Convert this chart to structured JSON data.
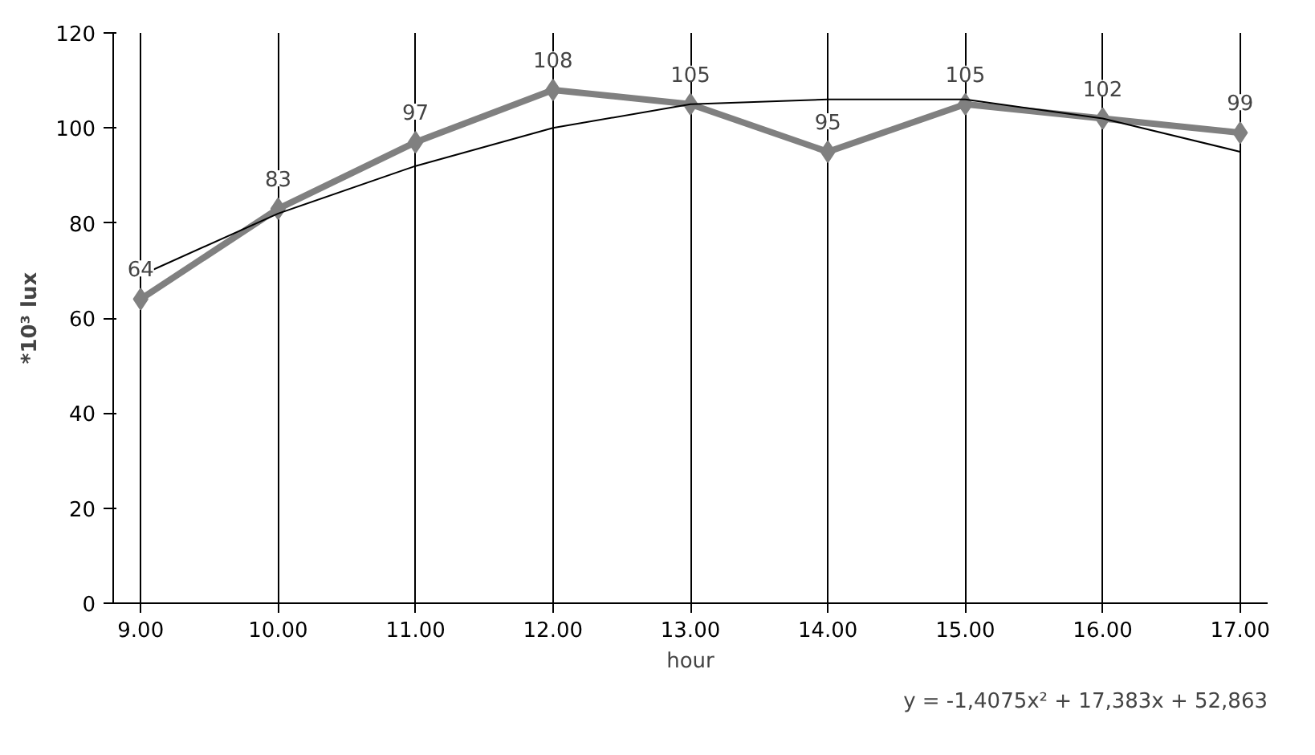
{
  "chart_data": {
    "type": "line",
    "ylabel": "*10³ lux",
    "xlabel": "hour",
    "annotations": [
      "y = -1,4075x² + 17,383x + 52,863"
    ],
    "categories": [
      "9.00",
      "10.00",
      "11.00",
      "12.00",
      "13.00",
      "14.00",
      "15.00",
      "16.00",
      "17.00"
    ],
    "series": [
      {
        "color": "#808080",
        "marker": "diamond",
        "values": [
          64,
          83,
          97,
          108,
          105,
          95,
          105,
          102,
          99
        ],
        "value_labels": [
          "64",
          "83",
          "97",
          "108",
          "105",
          "95",
          "105",
          "102",
          "99"
        ]
      },
      {
        "type": "line",
        "color": "#000000",
        "marker": "none",
        "values": [
          69,
          82,
          92,
          100,
          105,
          106,
          106,
          102,
          95
        ]
      }
    ],
    "ylim": [
      0,
      120
    ],
    "yticks": [
      0,
      20,
      40,
      60,
      80,
      100,
      120
    ],
    "grid": "x"
  }
}
